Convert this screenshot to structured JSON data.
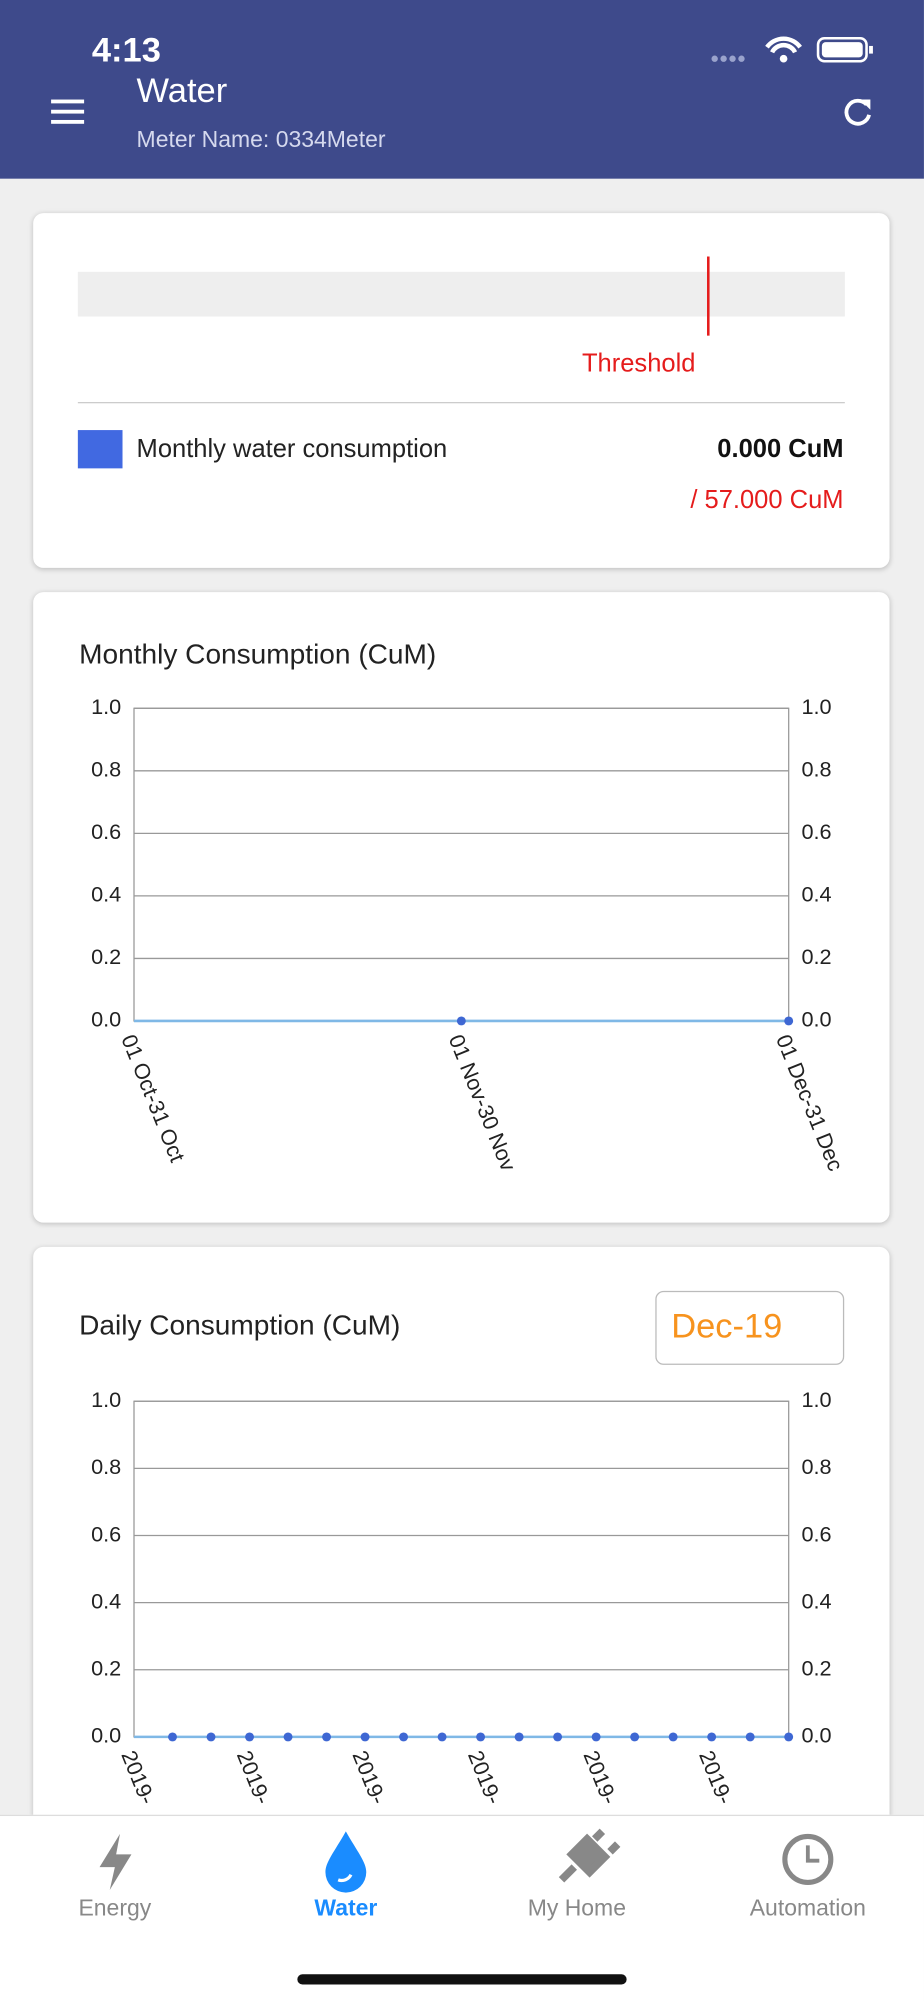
{
  "status_bar": {
    "time": "4:13"
  },
  "header": {
    "title": "Water",
    "subtitle": "Meter Name: 0334Meter"
  },
  "threshold_card": {
    "threshold_label": "Threshold",
    "legend": "Monthly water consumption",
    "value": "0.000 CuM",
    "limit": "/ 57.000 CuM"
  },
  "chart_data": [
    {
      "type": "line",
      "title": "Monthly Consumption (CuM)",
      "categories": [
        "01 Oct-31 Oct",
        "01 Nov-30 Nov",
        "01 Dec-31 Dec"
      ],
      "values": [
        0,
        0,
        0
      ],
      "color": "#3e67d3",
      "line_color": "#7fb8e6",
      "ylim": [
        0,
        1
      ],
      "yticks": [
        {
          "value": 0,
          "label": "0.0"
        },
        0.2,
        0.4,
        0.6,
        0.8,
        {
          "value": 1,
          "label": "1.0"
        }
      ],
      "grid": true
    },
    {
      "type": "line",
      "title": "Daily Consumption (CuM)",
      "period": "Dec-19",
      "categories": [
        "2019-",
        null,
        null,
        "2019-",
        null,
        null,
        "2019-",
        null,
        null,
        "2019-",
        null,
        null,
        "2019-",
        null,
        null,
        "2019-",
        null,
        null
      ],
      "values": [
        0,
        0,
        0,
        0,
        0,
        0,
        0,
        0,
        0,
        0,
        0,
        0,
        0,
        0,
        0,
        0,
        0,
        0
      ],
      "color": "#3e67d3",
      "line_color": "#7fb8e6",
      "ylim": [
        0,
        1
      ],
      "yticks": [
        {
          "value": 0,
          "label": "0.0"
        },
        0.2,
        0.4,
        0.6,
        0.8,
        {
          "value": 1,
          "label": "1.0"
        }
      ],
      "grid": true
    }
  ],
  "tab_bar": {
    "tabs": [
      "Energy",
      "Water",
      "My Home",
      "Automation"
    ]
  }
}
